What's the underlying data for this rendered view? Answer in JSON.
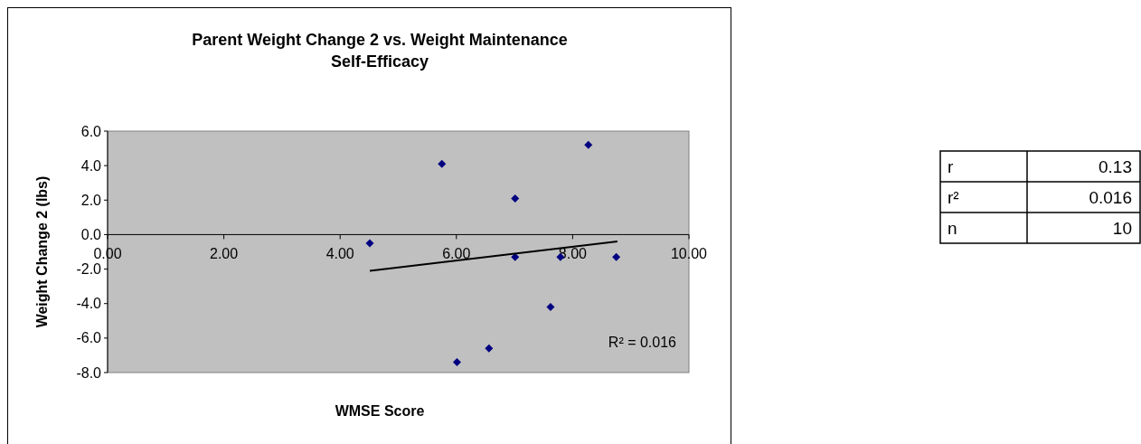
{
  "chart_data": {
    "type": "scatter",
    "title": "Parent Weight Change 2 vs. Weight Maintenance Self-Efficacy",
    "xlabel": "WMSE Score",
    "ylabel": "Weight Change 2 (lbs)",
    "series": [
      {
        "color": "#000080",
        "marker": "diamond",
        "x": [
          4.51,
          5.75,
          7.01,
          7.01,
          6.01,
          6.56,
          7.62,
          7.79,
          8.27,
          8.75
        ],
        "values": [
          -0.5,
          4.1,
          2.1,
          -1.3,
          -7.4,
          -6.6,
          -4.2,
          -1.3,
          5.2,
          -1.3
        ]
      },
      {
        "type": "line",
        "color": "#000000",
        "marker": "none",
        "x": [
          4.51,
          8.77
        ],
        "values": [
          -2.1,
          -0.4
        ]
      }
    ],
    "xlim": [
      0,
      10
    ],
    "ylim": [
      -8,
      6
    ],
    "xticks": [
      {
        "value": 0,
        "label": "0.00"
      },
      {
        "value": 2,
        "label": "2.00"
      },
      {
        "value": 4,
        "label": "4.00"
      },
      {
        "value": 6,
        "label": "6.00"
      },
      {
        "value": 8,
        "label": "8.00"
      },
      {
        "value": 10,
        "label": "10.00"
      }
    ],
    "yticks": [
      {
        "value": -8,
        "label": "-8.0"
      },
      {
        "value": -6,
        "label": "-6.0"
      },
      {
        "value": -4,
        "label": "-4.0"
      },
      {
        "value": -2,
        "label": "-2.0"
      },
      {
        "value": 0,
        "label": "0.0"
      },
      {
        "value": 2,
        "label": "2.0"
      },
      {
        "value": 4,
        "label": "4.0"
      },
      {
        "value": 6,
        "label": "6.0"
      }
    ],
    "grid": false,
    "annotations": [
      "R² = 0.016",
      "r",
      "0.13",
      "r²",
      "0.016",
      "n",
      "10"
    ]
  }
}
